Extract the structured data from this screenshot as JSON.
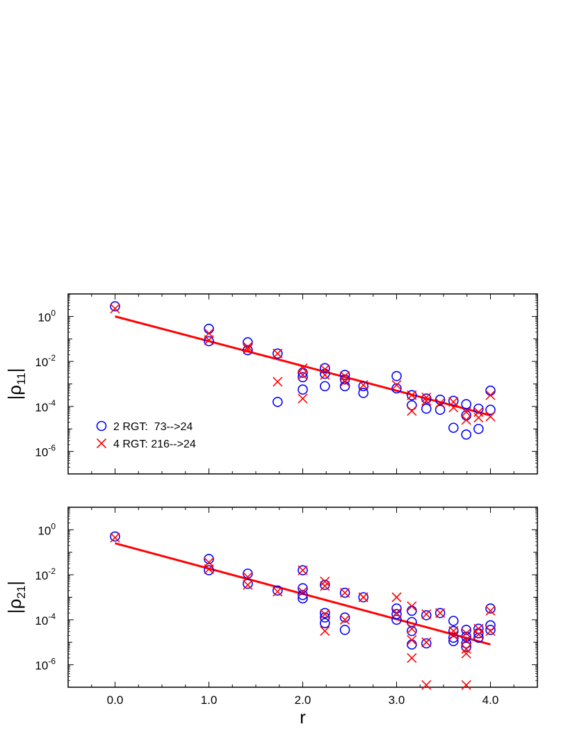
{
  "chart_data": [
    {
      "type": "scatter",
      "panel": "top",
      "ylabel_base": "|ρ",
      "ylabel_sub": "11",
      "ylabel_close": "|",
      "xlabel": "",
      "xlim": [
        -0.5,
        4.5
      ],
      "ylim_log10": [
        -7,
        1
      ],
      "x_tick_labels": [],
      "y_tick_base": "10",
      "y_tick_exponents": [
        "0",
        "-2",
        "-4",
        "-6"
      ],
      "legend": [
        {
          "name": "2 RGT:  73-->24",
          "marker": "circle",
          "color": "#0000ff"
        },
        {
          "name": "4 RGT: 216-->24",
          "marker": "cross",
          "color": "#ff0000"
        }
      ],
      "fit_line": {
        "x": [
          0.0,
          4.0
        ],
        "log10y": [
          0.0,
          -4.4
        ],
        "color": "#ff0000"
      },
      "series": [
        {
          "name": "2 RGT:  73-->24",
          "marker": "circle",
          "color": "#0000ff",
          "points": [
            [
              0.0,
              0.45
            ],
            [
              1.0,
              -0.55
            ],
            [
              1.0,
              -1.1
            ],
            [
              1.414,
              -1.15
            ],
            [
              1.414,
              -1.5
            ],
            [
              1.732,
              -1.65
            ],
            [
              1.732,
              -3.8
            ],
            [
              2.0,
              -2.5
            ],
            [
              2.0,
              -2.7
            ],
            [
              2.0,
              -3.25
            ],
            [
              2.236,
              -2.3
            ],
            [
              2.236,
              -2.55
            ],
            [
              2.236,
              -3.1
            ],
            [
              2.449,
              -2.6
            ],
            [
              2.449,
              -2.8
            ],
            [
              2.449,
              -3.1
            ],
            [
              2.646,
              -3.1
            ],
            [
              2.646,
              -3.4
            ],
            [
              3.0,
              -2.65
            ],
            [
              3.0,
              -3.2
            ],
            [
              3.162,
              -3.5
            ],
            [
              3.162,
              -3.95
            ],
            [
              3.317,
              -3.65
            ],
            [
              3.317,
              -4.1
            ],
            [
              3.464,
              -3.7
            ],
            [
              3.464,
              -4.15
            ],
            [
              3.606,
              -3.75
            ],
            [
              3.606,
              -4.95
            ],
            [
              3.742,
              -3.9
            ],
            [
              3.742,
              -4.4
            ],
            [
              3.742,
              -5.25
            ],
            [
              3.873,
              -4.1
            ],
            [
              3.873,
              -5.0
            ],
            [
              4.0,
              -3.3
            ],
            [
              4.0,
              -4.15
            ]
          ]
        },
        {
          "name": "4 RGT: 216-->24",
          "marker": "cross",
          "color": "#ff0000",
          "points": [
            [
              0.0,
              0.35
            ],
            [
              1.0,
              -0.75
            ],
            [
              1.0,
              -1.05
            ],
            [
              1.414,
              -1.35
            ],
            [
              1.414,
              -1.45
            ],
            [
              1.732,
              -1.65
            ],
            [
              1.732,
              -2.9
            ],
            [
              2.0,
              -2.3
            ],
            [
              2.0,
              -2.6
            ],
            [
              2.0,
              -3.65
            ],
            [
              2.236,
              -2.35
            ],
            [
              2.236,
              -2.6
            ],
            [
              2.449,
              -2.65
            ],
            [
              2.449,
              -2.9
            ],
            [
              2.646,
              -3.05
            ],
            [
              3.0,
              -3.05
            ],
            [
              3.162,
              -3.5
            ],
            [
              3.162,
              -4.2
            ],
            [
              3.317,
              -3.6
            ],
            [
              3.317,
              -3.75
            ],
            [
              3.464,
              -3.85
            ],
            [
              3.606,
              -3.8
            ],
            [
              3.606,
              -4.05
            ],
            [
              3.742,
              -4.25
            ],
            [
              3.742,
              -4.6
            ],
            [
              3.873,
              -4.25
            ],
            [
              3.873,
              -4.5
            ],
            [
              4.0,
              -3.5
            ],
            [
              4.0,
              -4.45
            ]
          ]
        }
      ]
    },
    {
      "type": "scatter",
      "panel": "bottom",
      "ylabel_base": "|ρ",
      "ylabel_sub": "21",
      "ylabel_close": "|",
      "xlabel": "r",
      "xlim": [
        -0.5,
        4.5
      ],
      "ylim_log10": [
        -7,
        1
      ],
      "x_tick_labels": [
        "0.0",
        "1.0",
        "2.0",
        "3.0",
        "4.0"
      ],
      "y_tick_base": "10",
      "y_tick_exponents": [
        "0",
        "-2",
        "-4",
        "-6"
      ],
      "fit_line": {
        "x": [
          0.0,
          4.0
        ],
        "log10y": [
          -0.6,
          -5.1
        ],
        "color": "#ff0000"
      },
      "series": [
        {
          "name": "2 RGT:  73-->24",
          "marker": "circle",
          "color": "#0000ff",
          "points": [
            [
              0.0,
              -0.3
            ],
            [
              1.0,
              -1.3
            ],
            [
              1.0,
              -1.8
            ],
            [
              1.414,
              -1.95
            ],
            [
              1.414,
              -2.4
            ],
            [
              1.732,
              -2.7
            ],
            [
              2.0,
              -1.8
            ],
            [
              2.0,
              -2.6
            ],
            [
              2.0,
              -2.9
            ],
            [
              2.0,
              -3.05
            ],
            [
              2.236,
              -2.45
            ],
            [
              2.236,
              -3.7
            ],
            [
              2.236,
              -3.9
            ],
            [
              2.236,
              -4.15
            ],
            [
              2.449,
              -2.8
            ],
            [
              2.449,
              -3.9
            ],
            [
              2.449,
              -4.45
            ],
            [
              2.646,
              -3.0
            ],
            [
              3.0,
              -3.5
            ],
            [
              3.0,
              -3.75
            ],
            [
              3.0,
              -4.0
            ],
            [
              3.162,
              -3.6
            ],
            [
              3.162,
              -4.1
            ],
            [
              3.162,
              -4.5
            ],
            [
              3.162,
              -5.1
            ],
            [
              3.317,
              -3.8
            ],
            [
              3.317,
              -5.05
            ],
            [
              3.464,
              -3.7
            ],
            [
              3.606,
              -4.05
            ],
            [
              3.606,
              -4.5
            ],
            [
              3.606,
              -4.8
            ],
            [
              3.606,
              -4.95
            ],
            [
              3.742,
              -4.45
            ],
            [
              3.742,
              -4.75
            ],
            [
              3.742,
              -5.05
            ],
            [
              3.742,
              -5.2
            ],
            [
              3.873,
              -4.4
            ],
            [
              3.873,
              -4.6
            ],
            [
              3.873,
              -4.8
            ],
            [
              4.0,
              -3.5
            ],
            [
              4.0,
              -4.25
            ],
            [
              4.0,
              -4.45
            ]
          ]
        },
        {
          "name": "4 RGT: 216-->24",
          "marker": "cross",
          "color": "#ff0000",
          "points": [
            [
              0.0,
              -0.35
            ],
            [
              1.0,
              -1.45
            ],
            [
              1.0,
              -1.75
            ],
            [
              1.414,
              -2.1
            ],
            [
              1.414,
              -2.45
            ],
            [
              1.732,
              -2.75
            ],
            [
              2.0,
              -1.8
            ],
            [
              2.0,
              -2.75
            ],
            [
              2.236,
              -2.3
            ],
            [
              2.236,
              -2.5
            ],
            [
              2.236,
              -3.75
            ],
            [
              2.236,
              -4.5
            ],
            [
              2.449,
              -2.8
            ],
            [
              2.449,
              -4.0
            ],
            [
              2.646,
              -3.0
            ],
            [
              3.0,
              -3.0
            ],
            [
              3.0,
              -3.7
            ],
            [
              3.162,
              -3.4
            ],
            [
              3.162,
              -4.4
            ],
            [
              3.162,
              -4.9
            ],
            [
              3.162,
              -5.7
            ],
            [
              3.317,
              -3.75
            ],
            [
              3.317,
              -5.0
            ],
            [
              3.317,
              -6.9
            ],
            [
              3.464,
              -3.7
            ],
            [
              3.606,
              -4.5
            ],
            [
              3.606,
              -4.7
            ],
            [
              3.742,
              -4.6
            ],
            [
              3.742,
              -4.9
            ],
            [
              3.742,
              -5.3
            ],
            [
              3.742,
              -5.5
            ],
            [
              3.742,
              -6.9
            ],
            [
              3.873,
              -4.4
            ],
            [
              3.873,
              -4.65
            ],
            [
              4.0,
              -3.6
            ],
            [
              4.0,
              -4.5
            ]
          ]
        }
      ]
    }
  ]
}
